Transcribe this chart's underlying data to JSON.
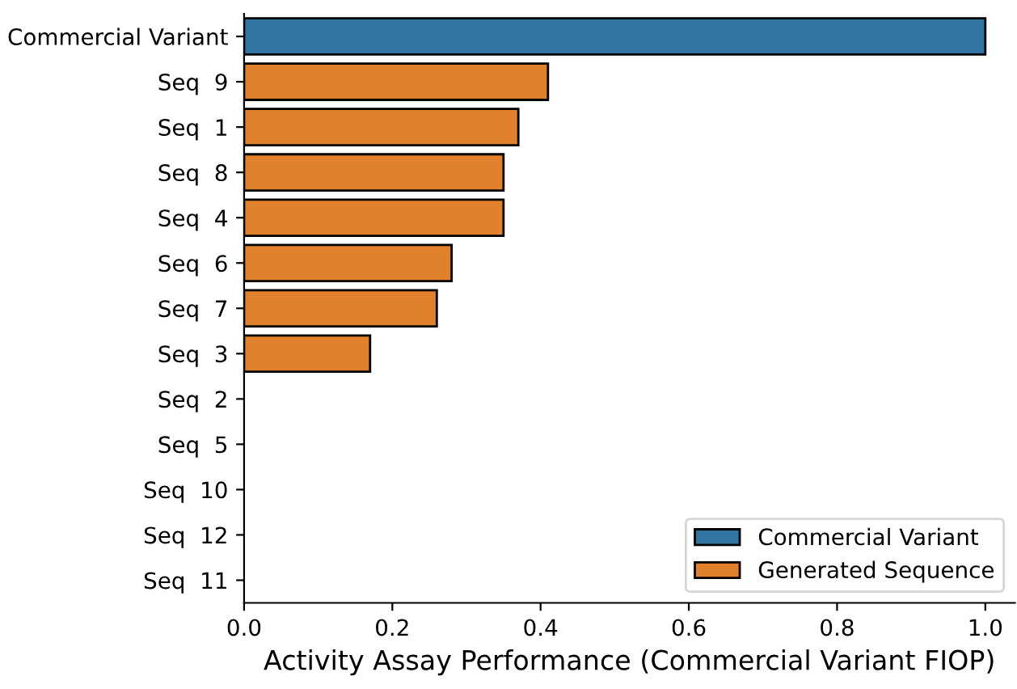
{
  "chart_data": {
    "type": "bar",
    "orientation": "horizontal",
    "xlabel": "Activity Assay Performance (Commercial Variant FIOP)",
    "categories": [
      "Commercial Variant",
      "Seq  9",
      "Seq  1",
      "Seq  8",
      "Seq  4",
      "Seq  6",
      "Seq  7",
      "Seq  3",
      "Seq  2",
      "Seq  5",
      "Seq  10",
      "Seq  12",
      "Seq  11"
    ],
    "series": [
      {
        "name": "Commercial Variant",
        "color": "#3274a1",
        "values": [
          1.0,
          null,
          null,
          null,
          null,
          null,
          null,
          null,
          null,
          null,
          null,
          null,
          null
        ]
      },
      {
        "name": "Generated Sequence",
        "color": "#e1812c",
        "values": [
          null,
          0.41,
          0.37,
          0.35,
          0.35,
          0.28,
          0.26,
          0.17,
          0,
          0,
          0,
          0,
          0
        ]
      }
    ],
    "xlim": [
      0,
      1.04
    ],
    "xticks": [
      {
        "value": 0,
        "label": "0.0"
      },
      0.2,
      0.4,
      0.6,
      0.8,
      {
        "value": 1,
        "label": "1.0"
      }
    ],
    "grid": false,
    "legend": "lower right"
  }
}
